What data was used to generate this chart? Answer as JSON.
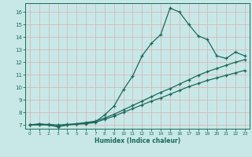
{
  "xlabel": "Humidex (Indice chaleur)",
  "bg_color": "#c8e8e8",
  "grid_color": "#d8b8b8",
  "line_color": "#1a6a5a",
  "xlim": [
    -0.5,
    23.5
  ],
  "ylim": [
    6.7,
    16.7
  ],
  "yticks": [
    7,
    8,
    9,
    10,
    11,
    12,
    13,
    14,
    15,
    16
  ],
  "xticks": [
    0,
    1,
    2,
    3,
    4,
    5,
    6,
    7,
    8,
    9,
    10,
    11,
    12,
    13,
    14,
    15,
    16,
    17,
    18,
    19,
    20,
    21,
    22,
    23
  ],
  "line1_x": [
    0,
    1,
    2,
    3,
    4,
    5,
    6,
    7,
    8,
    9,
    10,
    11,
    12,
    13,
    14,
    15,
    16,
    17,
    18,
    19,
    20,
    21,
    22,
    23
  ],
  "line1_y": [
    7.0,
    7.1,
    7.0,
    6.85,
    7.0,
    7.1,
    7.15,
    7.25,
    7.8,
    8.5,
    9.8,
    10.9,
    12.5,
    13.5,
    14.2,
    16.3,
    16.0,
    15.0,
    14.1,
    13.8,
    12.5,
    12.3,
    12.8,
    12.5
  ],
  "line2_x": [
    0,
    1,
    2,
    3,
    4,
    5,
    6,
    7,
    8,
    9,
    10,
    11,
    12,
    13,
    14,
    15,
    16,
    17,
    18,
    19,
    20,
    21,
    22,
    23
  ],
  "line2_y": [
    7.0,
    7.05,
    7.05,
    7.0,
    7.05,
    7.1,
    7.2,
    7.3,
    7.55,
    7.85,
    8.2,
    8.55,
    8.9,
    9.25,
    9.6,
    9.9,
    10.25,
    10.6,
    10.95,
    11.25,
    11.5,
    11.75,
    12.0,
    12.2
  ],
  "line3_x": [
    0,
    1,
    2,
    3,
    4,
    5,
    6,
    7,
    8,
    9,
    10,
    11,
    12,
    13,
    14,
    15,
    16,
    17,
    18,
    19,
    20,
    21,
    22,
    23
  ],
  "line3_y": [
    7.0,
    7.0,
    7.0,
    6.9,
    7.0,
    7.05,
    7.1,
    7.2,
    7.45,
    7.7,
    8.0,
    8.3,
    8.6,
    8.9,
    9.15,
    9.45,
    9.75,
    10.05,
    10.3,
    10.55,
    10.75,
    10.95,
    11.15,
    11.35
  ]
}
